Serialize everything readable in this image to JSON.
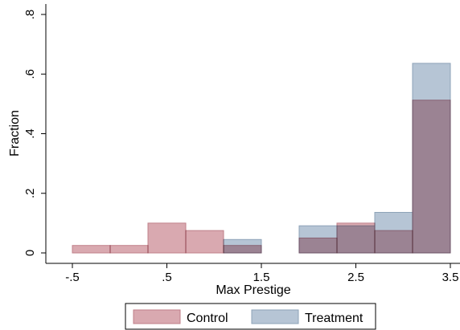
{
  "chart_data": {
    "type": "histogram",
    "bins": [
      -0.5,
      -0.1,
      0.3,
      0.7,
      1.1,
      1.5,
      1.9,
      2.3,
      2.7,
      3.1,
      3.5
    ],
    "series": [
      {
        "name": "Treatment",
        "color": "#b6c5d5",
        "edge": "#8ea3b8",
        "values": [
          0,
          0,
          0,
          0,
          0.045,
          0,
          0.091,
          0.091,
          0.136,
          0.636
        ]
      },
      {
        "name": "Control",
        "color": "#d9a9b0",
        "edge": "#c0808a",
        "values": [
          0.025,
          0.025,
          0.1,
          0.075,
          0.025,
          0,
          0.05,
          0.1,
          0.075,
          0.5125
        ]
      }
    ],
    "xlabel": "Max Prestige",
    "ylabel": "Fraction",
    "xlim": [
      -0.5,
      3.5
    ],
    "xticks": [
      {
        "value": -0.5,
        "label": "-.5"
      },
      {
        "value": 0.5,
        "label": ".5"
      },
      {
        "value": 1.5,
        "label": "1.5"
      },
      {
        "value": 2.5,
        "label": "2.5"
      },
      {
        "value": 3.5,
        "label": "3.5"
      }
    ],
    "ylim": [
      0,
      0.8
    ],
    "yticks": [
      0,
      {
        "value": 0.2,
        "label": ".2"
      },
      {
        "value": 0.4,
        "label": ".4"
      },
      {
        "value": 0.6,
        "label": ".6"
      },
      {
        "value": 0.8,
        "label": ".8"
      }
    ],
    "legend_order": [
      "Control",
      "Treatment"
    ]
  }
}
